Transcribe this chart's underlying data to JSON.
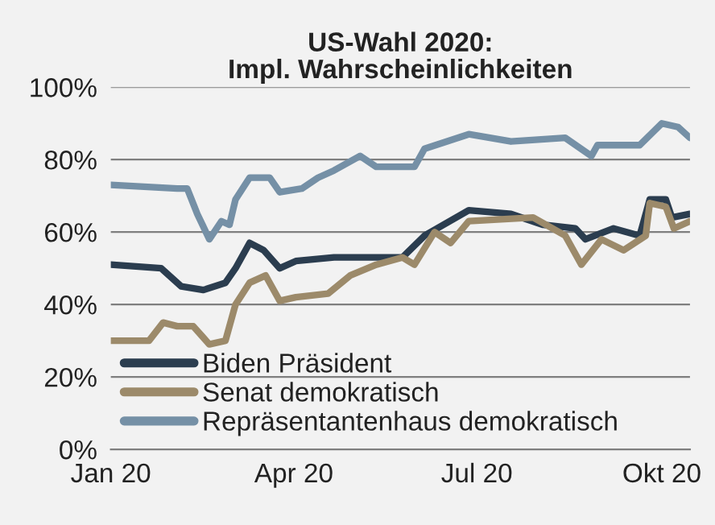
{
  "chart_data": {
    "type": "line",
    "title": "US-Wahl 2020:\nImpl. Wahrscheinlichkeiten",
    "xlim": [
      "2020-01-01",
      "2020-10-15"
    ],
    "xticks": [
      {
        "value": "2020-01-01",
        "label": "Jan 20"
      },
      {
        "value": "2020-04-01",
        "label": "Apr 20"
      },
      {
        "value": "2020-07-01",
        "label": "Jul 20"
      },
      {
        "value": "2020-10-01",
        "label": "Okt 20"
      }
    ],
    "ylim": [
      0,
      100
    ],
    "yticks": [
      {
        "value": 0,
        "label": "0%"
      },
      {
        "value": 20,
        "label": "20%"
      },
      {
        "value": 40,
        "label": "40%"
      },
      {
        "value": 60,
        "label": "60%"
      },
      {
        "value": 80,
        "label": "80%"
      },
      {
        "value": 100,
        "label": "100%"
      }
    ],
    "grid": "y",
    "legend": "bottom left",
    "line_style": "solid",
    "marker": "none",
    "series": [
      {
        "name": "Biden Präsident",
        "color": "#2b3d4f",
        "x": [
          "2020-01-01",
          "2020-01-26",
          "2020-02-05",
          "2020-02-16",
          "2020-02-27",
          "2020-03-03",
          "2020-03-10",
          "2020-03-17",
          "2020-03-25",
          "2020-04-02",
          "2020-04-21",
          "2020-05-25",
          "2020-06-05",
          "2020-06-27",
          "2020-07-18",
          "2020-08-03",
          "2020-08-19",
          "2020-08-24",
          "2020-09-07",
          "2020-09-20",
          "2020-09-25",
          "2020-10-03",
          "2020-10-06",
          "2020-10-15"
        ],
        "values": [
          51,
          50,
          45,
          44,
          46,
          50,
          57,
          55,
          50,
          52,
          53,
          53,
          59,
          66,
          65,
          62,
          61,
          58,
          61,
          59,
          69,
          69,
          64,
          65
        ]
      },
      {
        "name": "Senat demokratisch",
        "color": "#9c8a6a",
        "x": [
          "2020-01-01",
          "2020-01-20",
          "2020-01-27",
          "2020-02-03",
          "2020-02-11",
          "2020-02-19",
          "2020-02-27",
          "2020-03-03",
          "2020-03-10",
          "2020-03-18",
          "2020-03-25",
          "2020-04-02",
          "2020-04-18",
          "2020-04-29",
          "2020-05-12",
          "2020-05-25",
          "2020-05-31",
          "2020-06-10",
          "2020-06-18",
          "2020-06-27",
          "2020-07-29",
          "2020-08-14",
          "2020-08-22",
          "2020-09-01",
          "2020-09-12",
          "2020-09-23",
          "2020-09-25",
          "2020-10-03",
          "2020-10-07",
          "2020-10-15"
        ],
        "values": [
          30,
          30,
          35,
          34,
          34,
          29,
          30,
          40,
          46,
          48,
          41,
          42,
          43,
          48,
          51,
          53,
          51,
          60,
          57,
          63,
          64,
          59,
          51,
          58,
          55,
          59,
          68,
          67,
          61,
          63
        ]
      },
      {
        "name": "Repräsentantenhaus demokratisch",
        "color": "#7590a6",
        "x": [
          "2020-01-01",
          "2020-02-03",
          "2020-02-08",
          "2020-02-13",
          "2020-02-19",
          "2020-02-25",
          "2020-02-29",
          "2020-03-03",
          "2020-03-10",
          "2020-03-20",
          "2020-03-25",
          "2020-04-05",
          "2020-04-13",
          "2020-04-21",
          "2020-05-04",
          "2020-05-12",
          "2020-05-31",
          "2020-06-05",
          "2020-06-27",
          "2020-07-18",
          "2020-08-14",
          "2020-08-27",
          "2020-08-30",
          "2020-09-20",
          "2020-10-01",
          "2020-10-09",
          "2020-10-15"
        ],
        "values": [
          73,
          72,
          72,
          65,
          58,
          63,
          62,
          69,
          75,
          75,
          71,
          72,
          75,
          77,
          81,
          78,
          78,
          83,
          87,
          85,
          86,
          81,
          84,
          84,
          90,
          89,
          86
        ]
      }
    ]
  }
}
